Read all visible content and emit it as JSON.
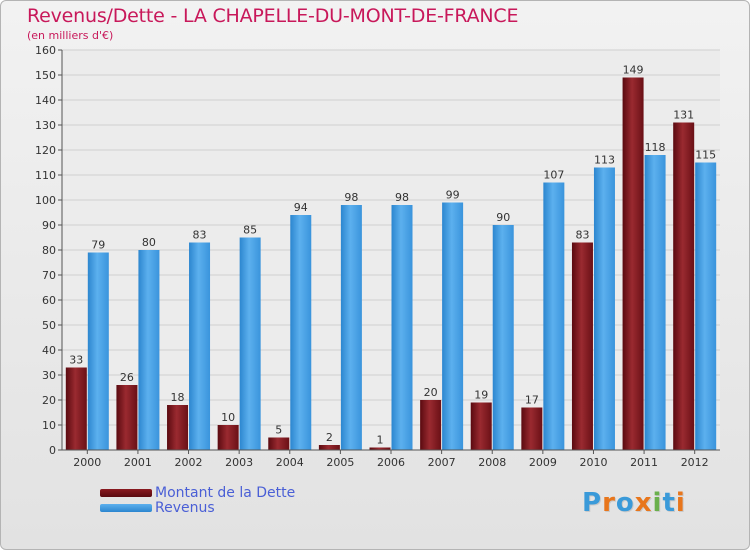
{
  "title": "Revenus/Dette - LA CHAPELLE-DU-MONT-DE-FRANCE",
  "subtitle": "(en milliers d'€)",
  "logo_text": "Proxiti",
  "colors": {
    "title": "#c8185a",
    "dette": "#8a2026",
    "revenus": "#3f9be0",
    "legend_text": "#4a5fd6"
  },
  "legend": [
    {
      "label": "Montant de la Dette",
      "color": "#6a0e14"
    },
    {
      "label": "Revenus",
      "color": "#3f9be0"
    }
  ],
  "chart_data": {
    "type": "bar",
    "categories": [
      "2000",
      "2001",
      "2002",
      "2003",
      "2004",
      "2005",
      "2006",
      "2007",
      "2008",
      "2009",
      "2010",
      "2011",
      "2012"
    ],
    "series": [
      {
        "name": "Montant de la Dette",
        "values": [
          33,
          26,
          18,
          10,
          5,
          2,
          1,
          20,
          19,
          17,
          83,
          149,
          131
        ]
      },
      {
        "name": "Revenus",
        "values": [
          79,
          80,
          83,
          85,
          94,
          98,
          98,
          99,
          90,
          107,
          113,
          118,
          115
        ]
      }
    ],
    "ylim": [
      0,
      160
    ],
    "yticks": [
      0,
      10,
      20,
      30,
      40,
      50,
      60,
      70,
      80,
      90,
      100,
      110,
      120,
      130,
      140,
      150,
      160
    ],
    "grid": true,
    "legend_position": "bottom-left"
  }
}
